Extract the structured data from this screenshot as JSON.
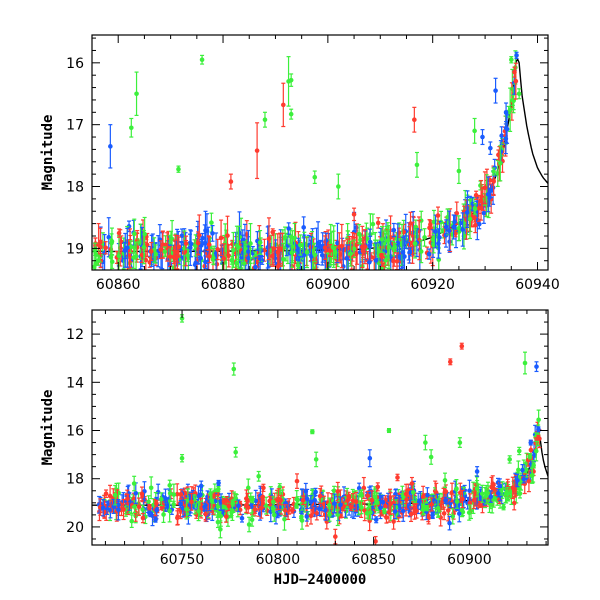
{
  "chart_data": [
    {
      "type": "scatter",
      "panel": "top",
      "xlabel": "",
      "ylabel": "Magnitude",
      "xlim": [
        60855,
        60942
      ],
      "ylim": [
        19.35,
        15.55
      ],
      "y_inverted": true,
      "xticks": [
        60860,
        60880,
        60900,
        60920,
        60940
      ],
      "yticks": [
        16,
        17,
        18,
        19
      ],
      "x_minor_step": 5,
      "y_minor_step": 0.2,
      "series_colors": [
        "#1a5cff",
        "#ff3b2f",
        "#3cf03c"
      ],
      "model_curve": {
        "x": [
          60855,
          60870,
          60890,
          60905,
          60915,
          60920,
          60925,
          60928,
          60930,
          60932,
          60933.5,
          60935,
          60935.6,
          60936,
          60936.5,
          60937,
          60938,
          60939,
          60940,
          60941,
          60942
        ],
        "y": [
          19.05,
          19.05,
          19.04,
          19.02,
          18.95,
          18.82,
          18.6,
          18.42,
          18.2,
          17.85,
          17.4,
          16.7,
          16.25,
          15.9,
          16.0,
          16.5,
          17.05,
          17.45,
          17.7,
          17.85,
          17.95
        ]
      },
      "outliers": [
        {
          "x": 60858.5,
          "y": 17.35,
          "err": 0.35,
          "c": 0
        },
        {
          "x": 60862.5,
          "y": 17.05,
          "err": 0.15,
          "c": 2
        },
        {
          "x": 60863.5,
          "y": 16.5,
          "err": 0.35,
          "c": 2
        },
        {
          "x": 60871.5,
          "y": 17.72,
          "err": 0.05,
          "c": 2
        },
        {
          "x": 60876,
          "y": 15.95,
          "err": 0.07,
          "c": 2
        },
        {
          "x": 60881.5,
          "y": 17.92,
          "err": 0.12,
          "c": 1
        },
        {
          "x": 60886.5,
          "y": 17.42,
          "err": 0.45,
          "c": 1
        },
        {
          "x": 60888,
          "y": 16.92,
          "err": 0.12,
          "c": 2
        },
        {
          "x": 60891.5,
          "y": 16.68,
          "err": 0.35,
          "c": 1
        },
        {
          "x": 60893,
          "y": 16.83,
          "err": 0.08,
          "c": 2
        },
        {
          "x": 60893,
          "y": 16.28,
          "err": 0.1,
          "c": 2
        },
        {
          "x": 60892.5,
          "y": 16.3,
          "err": 0.4,
          "c": 2
        },
        {
          "x": 60897.5,
          "y": 17.85,
          "err": 0.1,
          "c": 2
        },
        {
          "x": 60902,
          "y": 18.0,
          "err": 0.2,
          "c": 2
        },
        {
          "x": 60905,
          "y": 18.45,
          "err": 0.1,
          "c": 1
        },
        {
          "x": 60916.5,
          "y": 16.92,
          "err": 0.2,
          "c": 1
        },
        {
          "x": 60917,
          "y": 17.65,
          "err": 0.2,
          "c": 2
        },
        {
          "x": 60925,
          "y": 17.75,
          "err": 0.2,
          "c": 2
        },
        {
          "x": 60928,
          "y": 17.1,
          "err": 0.2,
          "c": 2
        },
        {
          "x": 60929.5,
          "y": 17.2,
          "err": 0.12,
          "c": 0
        },
        {
          "x": 60931,
          "y": 17.38,
          "err": 0.1,
          "c": 0
        },
        {
          "x": 60932,
          "y": 16.45,
          "err": 0.2,
          "c": 0
        },
        {
          "x": 60934,
          "y": 16.8,
          "err": 0.15,
          "c": 0
        },
        {
          "x": 60936,
          "y": 15.88,
          "err": 0.05,
          "c": 0
        },
        {
          "x": 60935.6,
          "y": 16.15,
          "err": 0.08,
          "c": 1
        },
        {
          "x": 60935,
          "y": 15.95,
          "err": 0.05,
          "c": 2
        },
        {
          "x": 60936.5,
          "y": 16.5,
          "err": 0.08,
          "c": 2
        }
      ]
    },
    {
      "type": "scatter",
      "panel": "bottom",
      "xlabel": "HJD−2400000",
      "ylabel": "Magnitude",
      "xlim": [
        60703,
        60941
      ],
      "ylim": [
        20.75,
        11.0
      ],
      "y_inverted": true,
      "xticks": [
        60750,
        60800,
        60850,
        60900
      ],
      "yticks": [
        12,
        14,
        16,
        18,
        20
      ],
      "x_minor_step": 10,
      "y_minor_step": 0.5,
      "series_colors": [
        "#1a5cff",
        "#ff3b2f",
        "#3cf03c"
      ],
      "model_curve": {
        "x": [
          60703,
          60750,
          60800,
          60850,
          60880,
          60900,
          60910,
          60920,
          60925,
          60930,
          60933,
          60935,
          60936,
          60937,
          60938,
          60939,
          60941
        ],
        "y": [
          19.1,
          19.1,
          19.08,
          19.05,
          19.0,
          18.9,
          18.78,
          18.55,
          18.3,
          17.8,
          17.2,
          16.6,
          16.0,
          16.4,
          17.0,
          17.4,
          17.9
        ]
      },
      "outliers": [
        {
          "x": 60750,
          "y": 11.35,
          "err": 0.15,
          "c": 2
        },
        {
          "x": 60777,
          "y": 13.45,
          "err": 0.25,
          "c": 2
        },
        {
          "x": 60890,
          "y": 13.15,
          "err": 0.12,
          "c": 1
        },
        {
          "x": 60896,
          "y": 12.5,
          "err": 0.12,
          "c": 1
        },
        {
          "x": 60929,
          "y": 13.2,
          "err": 0.45,
          "c": 2
        },
        {
          "x": 60935,
          "y": 13.35,
          "err": 0.2,
          "c": 0
        },
        {
          "x": 60750,
          "y": 17.15,
          "err": 0.15,
          "c": 2
        },
        {
          "x": 60778,
          "y": 16.9,
          "err": 0.2,
          "c": 2
        },
        {
          "x": 60818,
          "y": 16.05,
          "err": 0.08,
          "c": 2
        },
        {
          "x": 60820,
          "y": 17.2,
          "err": 0.3,
          "c": 2
        },
        {
          "x": 60848,
          "y": 17.15,
          "err": 0.35,
          "c": 0
        },
        {
          "x": 60858,
          "y": 16.0,
          "err": 0.08,
          "c": 2
        },
        {
          "x": 60877,
          "y": 16.5,
          "err": 0.3,
          "c": 2
        },
        {
          "x": 60880,
          "y": 17.1,
          "err": 0.3,
          "c": 2
        },
        {
          "x": 60895,
          "y": 16.5,
          "err": 0.2,
          "c": 2
        },
        {
          "x": 60904,
          "y": 17.7,
          "err": 0.2,
          "c": 0
        },
        {
          "x": 60921,
          "y": 17.2,
          "err": 0.15,
          "c": 2
        },
        {
          "x": 60926,
          "y": 16.85,
          "err": 0.15,
          "c": 2
        },
        {
          "x": 60932,
          "y": 16.5,
          "err": 0.1,
          "c": 0
        },
        {
          "x": 60936,
          "y": 15.95,
          "err": 0.1,
          "c": 0
        },
        {
          "x": 60936,
          "y": 16.3,
          "err": 0.1,
          "c": 1
        },
        {
          "x": 60770,
          "y": 20.1,
          "err": 0.35,
          "c": 2
        },
        {
          "x": 60785,
          "y": 19.9,
          "err": 0.3,
          "c": 2
        },
        {
          "x": 60830,
          "y": 20.4,
          "err": 0.3,
          "c": 1
        },
        {
          "x": 60851,
          "y": 20.6,
          "err": 0.2,
          "c": 1
        },
        {
          "x": 60725,
          "y": 18.2,
          "err": 0.3,
          "c": 2
        },
        {
          "x": 60760,
          "y": 18.3,
          "err": 0.2,
          "c": 0
        },
        {
          "x": 60790,
          "y": 17.9,
          "err": 0.2,
          "c": 2
        },
        {
          "x": 60810,
          "y": 18.1,
          "err": 0.3,
          "c": 1
        },
        {
          "x": 60870,
          "y": 18.2,
          "err": 0.25,
          "c": 1
        }
      ]
    }
  ]
}
